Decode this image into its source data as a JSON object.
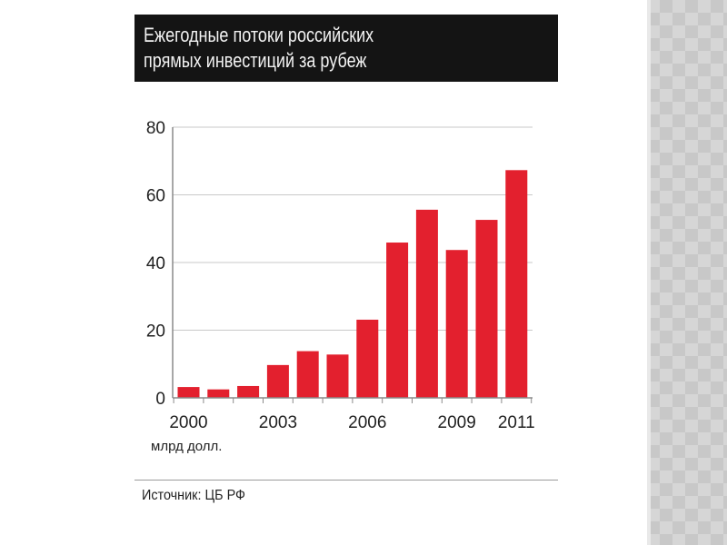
{
  "title_lines": [
    "Ежегодные потоки российских",
    "прямых инвестиций за рубеж"
  ],
  "source": "Источник: ЦБ РФ",
  "colors": {
    "bar": "#e3202e",
    "title_bg": "#141414",
    "grid": "#c9c9c9",
    "text": "#222222"
  },
  "chart_data": {
    "type": "bar",
    "title": "Ежегодные потоки российских прямых инвестиций за рубеж",
    "unit_label": "млрд долл.",
    "x": [
      2000,
      2001,
      2002,
      2003,
      2004,
      2005,
      2006,
      2007,
      2008,
      2009,
      2010,
      2011
    ],
    "x_tick_labels": [
      "2000",
      "2003",
      "2006",
      "2009",
      "2011"
    ],
    "values": [
      3.2,
      2.5,
      3.5,
      9.7,
      13.8,
      12.8,
      23.1,
      45.9,
      55.6,
      43.7,
      52.6,
      67.3
    ],
    "ylim": [
      0,
      80
    ],
    "y_ticks": [
      0,
      20,
      40,
      60,
      80
    ],
    "grid": true
  }
}
